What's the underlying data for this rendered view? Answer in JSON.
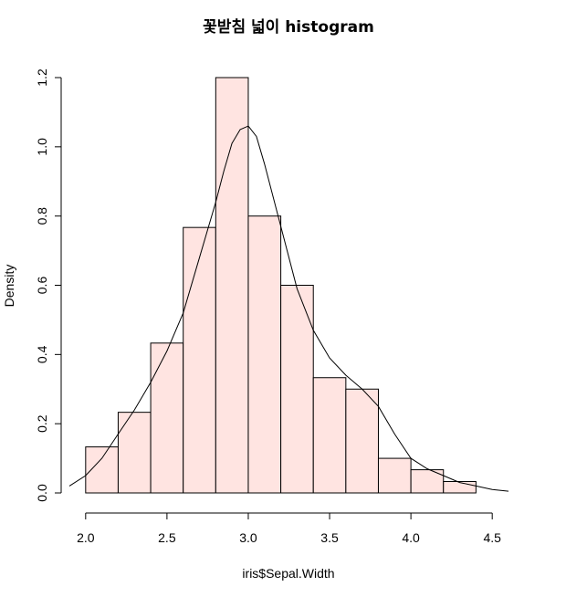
{
  "chart_data": {
    "type": "bar",
    "title": "꽃받침 넓이 histogram",
    "xlabel": "iris$Sepal.Width",
    "ylabel": "Density",
    "bins": [
      {
        "from": 2.0,
        "to": 2.2,
        "density": 0.133
      },
      {
        "from": 2.2,
        "to": 2.4,
        "density": 0.233
      },
      {
        "from": 2.4,
        "to": 2.6,
        "density": 0.433
      },
      {
        "from": 2.6,
        "to": 2.8,
        "density": 0.767
      },
      {
        "from": 2.8,
        "to": 3.0,
        "density": 1.2
      },
      {
        "from": 3.0,
        "to": 3.2,
        "density": 0.8
      },
      {
        "from": 3.2,
        "to": 3.4,
        "density": 0.6
      },
      {
        "from": 3.4,
        "to": 3.6,
        "density": 0.333
      },
      {
        "from": 3.6,
        "to": 3.8,
        "density": 0.3
      },
      {
        "from": 3.8,
        "to": 4.0,
        "density": 0.1
      },
      {
        "from": 4.0,
        "to": 4.2,
        "density": 0.067
      },
      {
        "from": 4.2,
        "to": 4.4,
        "density": 0.033
      }
    ],
    "bar_color": "#ffe4e1",
    "density_curve": {
      "x": [
        1.9,
        2.0,
        2.1,
        2.2,
        2.3,
        2.4,
        2.5,
        2.6,
        2.7,
        2.8,
        2.85,
        2.9,
        2.95,
        3.0,
        3.05,
        3.1,
        3.2,
        3.3,
        3.4,
        3.5,
        3.6,
        3.7,
        3.8,
        3.9,
        4.0,
        4.1,
        4.2,
        4.3,
        4.4,
        4.5,
        4.6
      ],
      "y": [
        0.02,
        0.05,
        0.1,
        0.17,
        0.24,
        0.32,
        0.41,
        0.52,
        0.68,
        0.84,
        0.93,
        1.01,
        1.05,
        1.06,
        1.03,
        0.95,
        0.77,
        0.59,
        0.47,
        0.39,
        0.34,
        0.3,
        0.25,
        0.17,
        0.1,
        0.07,
        0.05,
        0.03,
        0.02,
        0.01,
        0.005
      ]
    },
    "xlim": [
      1.9,
      4.6
    ],
    "ylim": [
      0,
      1.2
    ],
    "x_ticks": [
      "2.0",
      "2.5",
      "3.0",
      "3.5",
      "4.0",
      "4.5"
    ],
    "y_ticks": [
      "0.0",
      "0.2",
      "0.4",
      "0.6",
      "0.8",
      "1.0",
      "1.2"
    ],
    "grid": false,
    "legend": "none"
  }
}
